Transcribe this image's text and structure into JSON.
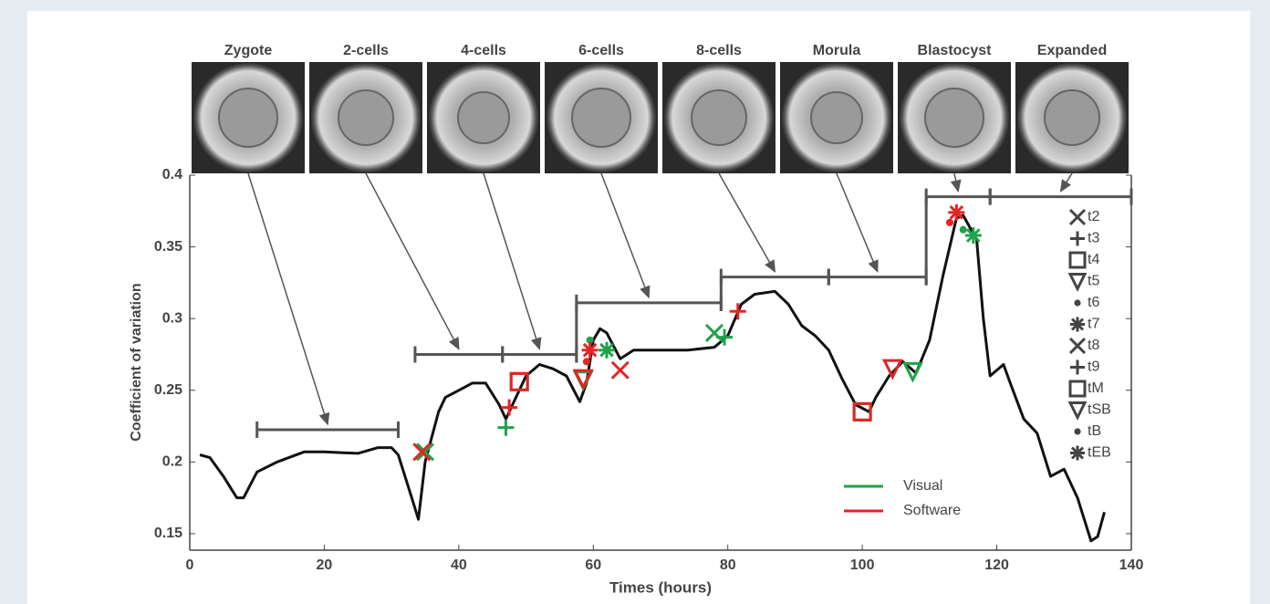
{
  "chart_data": {
    "type": "line",
    "ylabel": "Coefficient of variation",
    "xlabel": "Times (hours)",
    "xlim": [
      0,
      140
    ],
    "xticks": [
      0,
      20,
      40,
      60,
      80,
      100,
      120,
      140
    ],
    "ylim": [
      0.1385,
      0.4
    ],
    "yticks": [
      0.15,
      0.2,
      0.25,
      0.3,
      0.35,
      0.4
    ],
    "curve": {
      "color": "#111111",
      "x": [
        1.5,
        3,
        5,
        7,
        8,
        10,
        13,
        17,
        20,
        25,
        28,
        30,
        31,
        33,
        34,
        35,
        37,
        38,
        40,
        42,
        44,
        46,
        47,
        48,
        50,
        52,
        54,
        56,
        58,
        59,
        60,
        61,
        62,
        64,
        66,
        70,
        74,
        78,
        80,
        82,
        84,
        87,
        89,
        91,
        93,
        95,
        97,
        99,
        101,
        102,
        104,
        106,
        108,
        110,
        112,
        114,
        115,
        117,
        118,
        119,
        121,
        122,
        124,
        126,
        128,
        130,
        132,
        134,
        135,
        136
      ],
      "values": [
        0.205,
        0.203,
        0.19,
        0.175,
        0.175,
        0.193,
        0.2,
        0.207,
        0.207,
        0.206,
        0.21,
        0.21,
        0.205,
        0.175,
        0.16,
        0.2,
        0.235,
        0.245,
        0.25,
        0.255,
        0.255,
        0.24,
        0.23,
        0.24,
        0.26,
        0.268,
        0.265,
        0.26,
        0.242,
        0.255,
        0.285,
        0.293,
        0.29,
        0.272,
        0.278,
        0.278,
        0.278,
        0.28,
        0.288,
        0.31,
        0.317,
        0.319,
        0.31,
        0.295,
        0.288,
        0.278,
        0.258,
        0.24,
        0.235,
        0.245,
        0.26,
        0.27,
        0.262,
        0.285,
        0.33,
        0.37,
        0.372,
        0.355,
        0.3,
        0.26,
        0.268,
        0.255,
        0.23,
        0.22,
        0.19,
        0.195,
        0.175,
        0.145,
        0.148,
        0.165
      ]
    },
    "stages": [
      {
        "name": "Zygote",
        "start": 10,
        "end": 31,
        "level": 0.2225
      },
      {
        "name": "2-cells",
        "start": 33.5,
        "end": 46.5,
        "level": 0.275
      },
      {
        "name": "4-cells",
        "start": 46.5,
        "end": 57.5,
        "level": 0.275
      },
      {
        "name": "6-cells",
        "start": 57.5,
        "end": 79,
        "level": 0.311
      },
      {
        "name": "8-cells",
        "start": 79,
        "end": 95,
        "level": 0.329
      },
      {
        "name": "Morula",
        "start": 95,
        "end": 109.5,
        "level": 0.329
      },
      {
        "name": "Blastocyst",
        "start": 109.5,
        "end": 119,
        "level": 0.385
      },
      {
        "name": "Expanded",
        "start": 119,
        "end": 140,
        "level": 0.385
      }
    ],
    "events": [
      {
        "name": "t2",
        "shape": "x"
      },
      {
        "name": "t3",
        "shape": "plus"
      },
      {
        "name": "t4",
        "shape": "square"
      },
      {
        "name": "t5",
        "shape": "triangle"
      },
      {
        "name": "t6",
        "shape": "dot"
      },
      {
        "name": "t7",
        "shape": "asterisk"
      },
      {
        "name": "t8",
        "shape": "x"
      },
      {
        "name": "t9",
        "shape": "plus"
      },
      {
        "name": "tM",
        "shape": "square"
      },
      {
        "name": "tSB",
        "shape": "triangle"
      },
      {
        "name": "tB",
        "shape": "dot"
      },
      {
        "name": "tEB",
        "shape": "asterisk"
      }
    ],
    "series": [
      {
        "name": "Visual",
        "color": "#1fa34a",
        "x": [
          35,
          47,
          49,
          58.5,
          59.5,
          62,
          78,
          79.5,
          100,
          107.5,
          115,
          116.5
        ],
        "values": [
          0.207,
          0.224,
          0.256,
          0.257,
          0.285,
          0.278,
          0.29,
          0.287,
          0.235,
          0.263,
          0.362,
          0.358
        ]
      },
      {
        "name": "Software",
        "color": "#e32424",
        "x": [
          34.5,
          47.5,
          49,
          58.5,
          59,
          59.5,
          64,
          81.5,
          100,
          104.5,
          113,
          114
        ],
        "values": [
          0.207,
          0.238,
          0.256,
          0.258,
          0.27,
          0.278,
          0.264,
          0.305,
          0.235,
          0.265,
          0.367,
          0.374
        ]
      }
    ]
  }
}
